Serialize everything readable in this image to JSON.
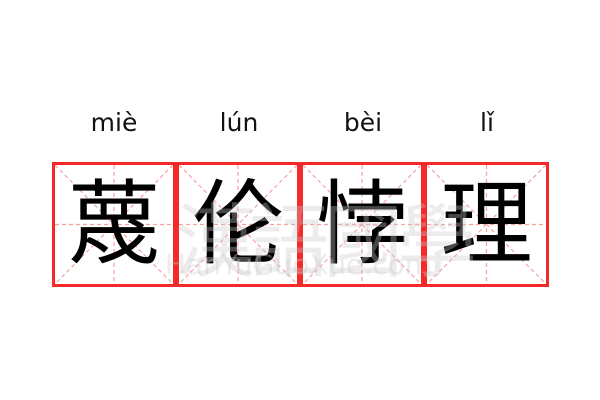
{
  "idiom": {
    "pinyin": [
      "miè",
      "lún",
      "bèi",
      "lǐ"
    ],
    "characters": [
      "蔑",
      "伦",
      "悖",
      "理"
    ]
  },
  "watermark": {
    "chinese": "漢語國學",
    "latin": "HanYuGuoXue.com"
  },
  "colors": {
    "grid_border": "#f42a2a",
    "grid_guides": "#f7a0a0",
    "text": "#000000"
  }
}
